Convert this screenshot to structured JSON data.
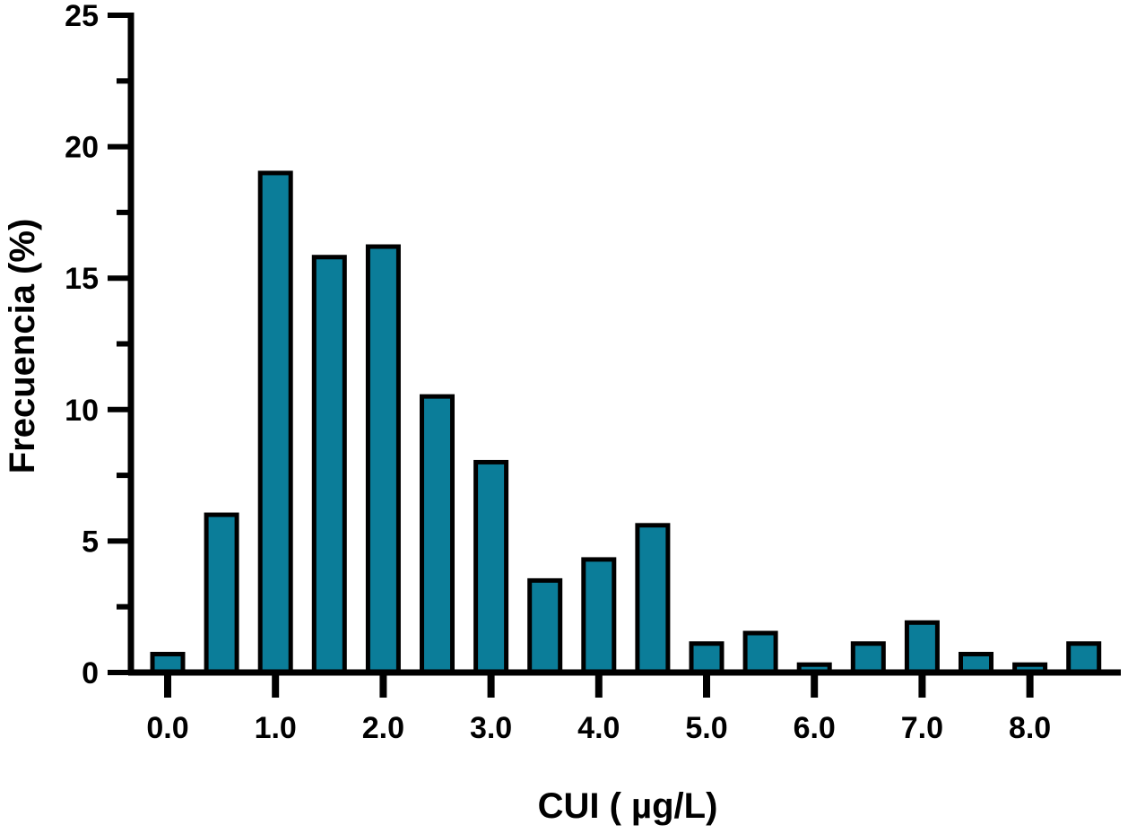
{
  "chart_data": {
    "type": "bar",
    "xlabel": "CUI ( µg/L)",
    "ylabel": "Frecuencia (%)",
    "ylim": [
      0,
      25
    ],
    "yticks": [
      0,
      5,
      10,
      15,
      20,
      25
    ],
    "xlim": [
      -0.25,
      8.75
    ],
    "xticks": [
      0.0,
      1.0,
      2.0,
      3.0,
      4.0,
      5.0,
      6.0,
      7.0,
      8.0
    ],
    "xtick_labels": [
      "0.0",
      "1.0",
      "2.0",
      "3.0",
      "4.0",
      "5.0",
      "6.0",
      "7.0",
      "8.0"
    ],
    "bin_centers": [
      0.0,
      0.5,
      1.0,
      1.5,
      2.0,
      2.5,
      3.0,
      3.5,
      4.0,
      4.5,
      5.0,
      5.5,
      6.0,
      6.5,
      7.0,
      7.5,
      8.0,
      8.5
    ],
    "values": [
      0.7,
      6.0,
      19.0,
      15.8,
      16.2,
      10.5,
      8.0,
      3.5,
      4.3,
      5.6,
      1.1,
      1.5,
      0.3,
      1.1,
      1.9,
      0.7,
      0.3,
      1.1
    ],
    "bar_color": "#0b7d99",
    "edge_color": "#000000",
    "grid": false,
    "legend": "none"
  }
}
